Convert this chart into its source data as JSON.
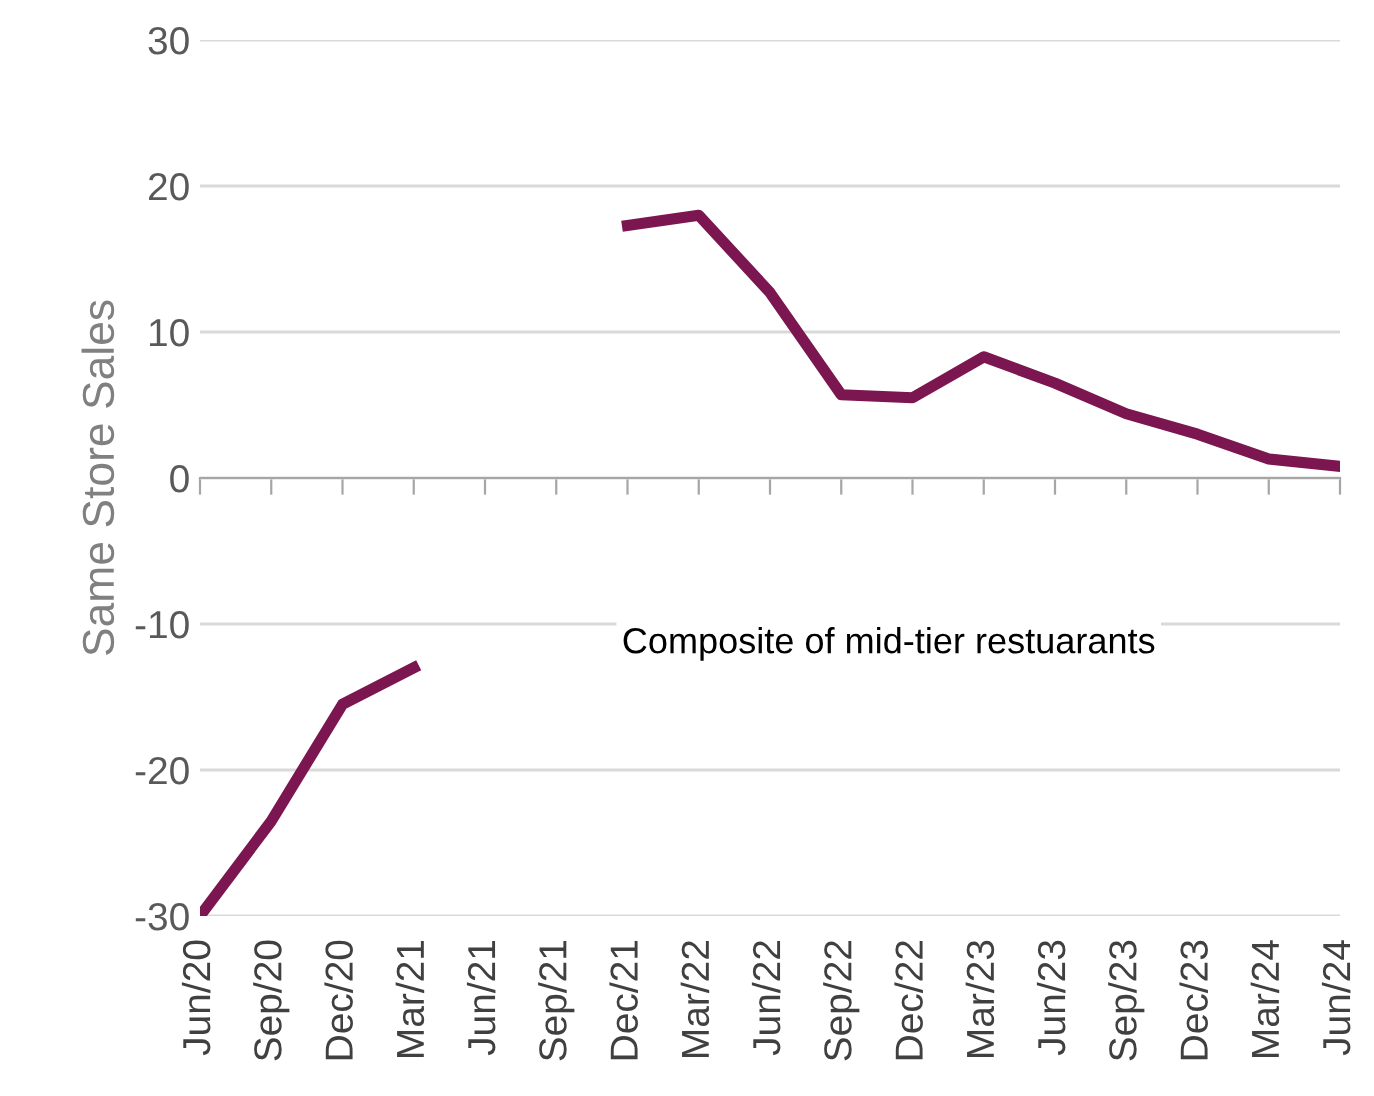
{
  "chart_data": {
    "type": "line",
    "ylabel": "Same Store Sales",
    "categories": [
      "Jun/20",
      "Sep/20",
      "Dec/20",
      "Mar/21",
      "Jun/21",
      "Sep/21",
      "Dec/21",
      "Mar/22",
      "Jun/22",
      "Sep/22",
      "Dec/22",
      "Mar/23",
      "Jun/23",
      "Sep/23",
      "Dec/23",
      "Mar/24",
      "Jun/24"
    ],
    "series": [
      {
        "color": "#7b1650",
        "values": [
          -30,
          -23.5,
          -15.5,
          -13,
          null,
          null,
          17.3,
          18,
          12.7,
          5.7,
          5.5,
          8.3,
          6.5,
          4.4,
          3,
          1.3,
          0.8
        ]
      }
    ],
    "ylim": [
      -30,
      30
    ],
    "yticks": [
      -30,
      -20,
      -10,
      0,
      10,
      20,
      30
    ],
    "grid": "y",
    "marker": "none",
    "line_style": "solid",
    "annotations": [
      "Composite of mid-tier restuarants"
    ]
  }
}
